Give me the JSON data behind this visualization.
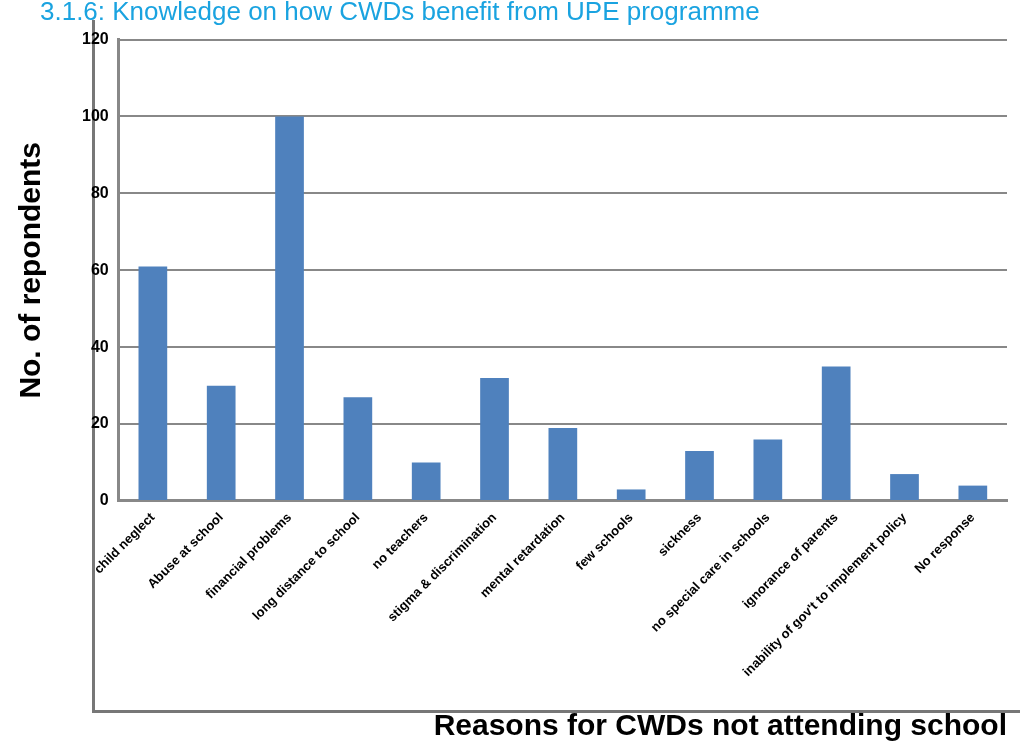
{
  "chart_data": {
    "type": "bar",
    "title": "3.1.6: Knowledge on how CWDs benefit from UPE programme",
    "xlabel": "Reasons for CWDs not attending school",
    "ylabel": "No. of repondents",
    "categories": [
      "child neglect",
      "Abuse at school",
      "financial problems",
      "long distance to school",
      "no teachers",
      "stigma & discrimination",
      "mental retardation",
      "few schools",
      "sickness",
      "no special care in schools",
      "ignorance of parents",
      "inability of gov't to implement policy",
      "No response"
    ],
    "values": [
      61,
      30,
      100,
      27,
      10,
      32,
      19,
      3,
      13,
      16,
      35,
      7,
      4
    ],
    "color": "#4f81bd",
    "ylim": [
      0,
      120
    ],
    "yticks": [
      0,
      20,
      40,
      60,
      80,
      100,
      120
    ],
    "grid": "y",
    "legend": false
  }
}
